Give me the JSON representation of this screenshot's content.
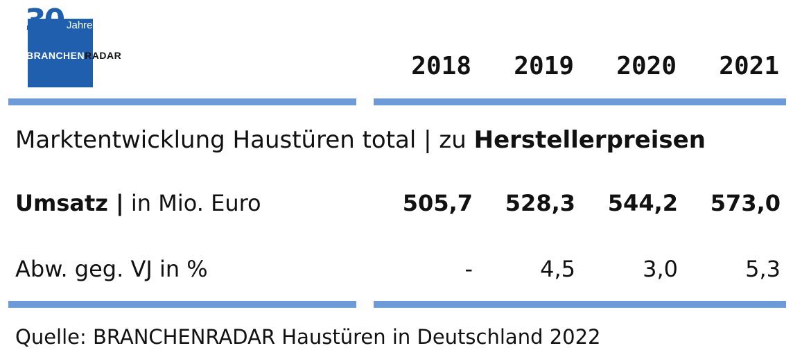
{
  "logo": {
    "anniversary_number": "30",
    "anniversary_word": "Jahre",
    "brand_part1": "BRANCHEN",
    "brand_part2": "RADAR"
  },
  "colors": {
    "accent_blue": "#6c9bd8",
    "logo_blue": "#1f5fae",
    "text": "#111111"
  },
  "chart_data": {
    "type": "table",
    "columns": [
      "2018",
      "2019",
      "2020",
      "2021"
    ],
    "subtitle_regular": "Marktentwicklung Haustüren total | zu ",
    "subtitle_bold": "Herstellerpreisen",
    "rows": [
      {
        "label_bold": "Umsatz |",
        "label_regular": " in Mio. Euro",
        "values": [
          "505,7",
          "528,3",
          "544,2",
          "573,0"
        ]
      },
      {
        "label_bold": "",
        "label_regular": "Abw. geg. VJ in %",
        "values": [
          "-",
          "4,5",
          "3,0",
          "5,3"
        ]
      }
    ],
    "source": "Quelle: BRANCHENRADAR Haustüren in Deutschland 2022"
  }
}
